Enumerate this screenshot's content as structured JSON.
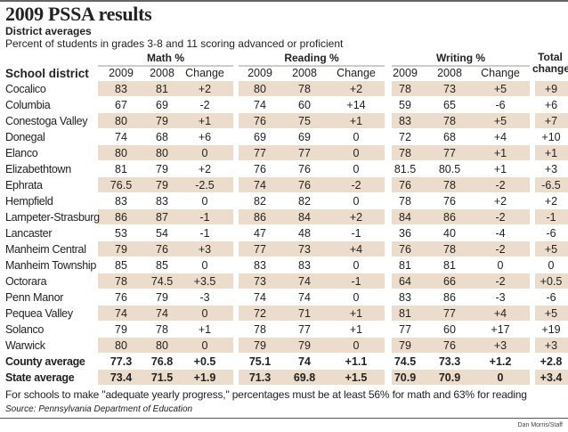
{
  "title": "2009 PSSA results",
  "subtitle": "District averages",
  "description": "Percent of students in grades 3-8 and 11 scoring advanced or proficient",
  "groups": {
    "math": "Math %",
    "reading": "Reading %",
    "writing": "Writing %",
    "total": "Total change"
  },
  "headers": {
    "district": "School district",
    "y2009": "2009",
    "y2008": "2008",
    "change": "Change"
  },
  "shade_color": "#ecdccb",
  "rows": [
    {
      "name": "Cocalico",
      "m09": "83",
      "m08": "81",
      "mc": "+2",
      "r09": "80",
      "r08": "78",
      "rc": "+2",
      "w09": "78",
      "w08": "73",
      "wc": "+5",
      "t": "+9"
    },
    {
      "name": "Columbia",
      "m09": "67",
      "m08": "69",
      "mc": "-2",
      "r09": "74",
      "r08": "60",
      "rc": "+14",
      "w09": "59",
      "w08": "65",
      "wc": "-6",
      "t": "+6"
    },
    {
      "name": "Conestoga Valley",
      "m09": "80",
      "m08": "79",
      "mc": "+1",
      "r09": "76",
      "r08": "75",
      "rc": "+1",
      "w09": "83",
      "w08": "78",
      "wc": "+5",
      "t": "+7"
    },
    {
      "name": "Donegal",
      "m09": "74",
      "m08": "68",
      "mc": "+6",
      "r09": "69",
      "r08": "69",
      "rc": "0",
      "w09": "72",
      "w08": "68",
      "wc": "+4",
      "t": "+10"
    },
    {
      "name": "Elanco",
      "m09": "80",
      "m08": "80",
      "mc": "0",
      "r09": "77",
      "r08": "77",
      "rc": "0",
      "w09": "78",
      "w08": "77",
      "wc": "+1",
      "t": "+1"
    },
    {
      "name": "Elizabethtown",
      "m09": "81",
      "m08": "79",
      "mc": "+2",
      "r09": "76",
      "r08": "76",
      "rc": "0",
      "w09": "81.5",
      "w08": "80.5",
      "wc": "+1",
      "t": "+3"
    },
    {
      "name": "Ephrata",
      "m09": "76.5",
      "m08": "79",
      "mc": "-2.5",
      "r09": "74",
      "r08": "76",
      "rc": "-2",
      "w09": "76",
      "w08": "78",
      "wc": "-2",
      "t": "-6.5"
    },
    {
      "name": "Hempfield",
      "m09": "83",
      "m08": "83",
      "mc": "0",
      "r09": "82",
      "r08": "82",
      "rc": "0",
      "w09": "78",
      "w08": "76",
      "wc": "+2",
      "t": "+2"
    },
    {
      "name": "Lampeter-Strasburg",
      "m09": "86",
      "m08": "87",
      "mc": "-1",
      "r09": "86",
      "r08": "84",
      "rc": "+2",
      "w09": "84",
      "w08": "86",
      "wc": "-2",
      "t": "-1"
    },
    {
      "name": "Lancaster",
      "m09": "53",
      "m08": "54",
      "mc": "-1",
      "r09": "47",
      "r08": "48",
      "rc": "-1",
      "w09": "36",
      "w08": "40",
      "wc": "-4",
      "t": "-6"
    },
    {
      "name": "Manheim Central",
      "m09": "79",
      "m08": "76",
      "mc": "+3",
      "r09": "77",
      "r08": "73",
      "rc": "+4",
      "w09": "76",
      "w08": "78",
      "wc": "-2",
      "t": "+5"
    },
    {
      "name": "Manheim Township",
      "m09": "85",
      "m08": "85",
      "mc": "0",
      "r09": "83",
      "r08": "83",
      "rc": "0",
      "w09": "81",
      "w08": "81",
      "wc": "0",
      "t": "0"
    },
    {
      "name": "Octorara",
      "m09": "78",
      "m08": "74.5",
      "mc": "+3.5",
      "r09": "73",
      "r08": "74",
      "rc": "-1",
      "w09": "64",
      "w08": "66",
      "wc": "-2",
      "t": "+0.5"
    },
    {
      "name": "Penn Manor",
      "m09": "76",
      "m08": "79",
      "mc": "-3",
      "r09": "74",
      "r08": "74",
      "rc": "0",
      "w09": "83",
      "w08": "86",
      "wc": "-3",
      "t": "-6"
    },
    {
      "name": "Pequea Valley",
      "m09": "74",
      "m08": "74",
      "mc": "0",
      "r09": "72",
      "r08": "71",
      "rc": "+1",
      "w09": "81",
      "w08": "77",
      "wc": "+4",
      "t": "+5"
    },
    {
      "name": "Solanco",
      "m09": "79",
      "m08": "78",
      "mc": "+1",
      "r09": "78",
      "r08": "77",
      "rc": "+1",
      "w09": "77",
      "w08": "60",
      "wc": "+17",
      "t": "+19"
    },
    {
      "name": "Warwick",
      "m09": "80",
      "m08": "80",
      "mc": "0",
      "r09": "79",
      "r08": "79",
      "rc": "0",
      "w09": "79",
      "w08": "76",
      "wc": "+3",
      "t": "+3"
    },
    {
      "name": "County average",
      "m09": "77.3",
      "m08": "76.8",
      "mc": "+0.5",
      "r09": "75.1",
      "r08": "74",
      "rc": "+1.1",
      "w09": "74.5",
      "w08": "73.3",
      "wc": "+1.2",
      "t": "+2.8"
    },
    {
      "name": "State average",
      "m09": "73.4",
      "m08": "71.5",
      "mc": "+1.9",
      "r09": "71.3",
      "r08": "69.8",
      "rc": "+1.5",
      "w09": "70.9",
      "w08": "70.9",
      "wc": "0",
      "t": "+3.4"
    }
  ],
  "footnote": "For schools to make \"adequate yearly progress,\" percentages must be at least 56% for math and 63% for reading",
  "source": "Source: Pennsylvania Department of Education",
  "credit": "Dan Morris/Staff"
}
